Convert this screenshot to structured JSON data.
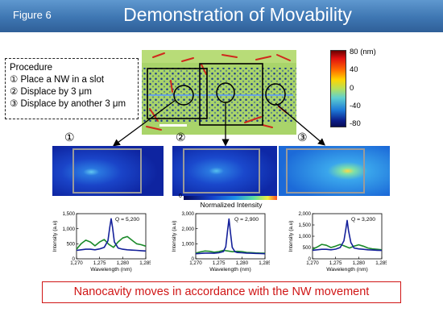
{
  "header": {
    "figure_label": "Figure 6",
    "title": "Demonstration of Movability"
  },
  "procedure": {
    "heading": "Procedure",
    "steps": [
      {
        "marker": "①",
        "text": " Place a NW in a slot"
      },
      {
        "marker": "②",
        "text": " Displace by 3 μm"
      },
      {
        "marker": "③",
        "text": " Displace by another 3 μm"
      }
    ]
  },
  "afm_colorbar": {
    "ticks": [
      "80 (nm)",
      "40",
      "0",
      "-40",
      "-80"
    ]
  },
  "step_markers": [
    "①",
    "②",
    "③"
  ],
  "pl_colorbar": {
    "label": "Normalized Intensity",
    "zero_label": "0"
  },
  "chart_data": [
    {
      "type": "line",
      "panel": "①",
      "annotation": "Q = 5,200",
      "xlabel": "Wavelength (nm)",
      "ylabel": "Intensity (a.u)",
      "xlim": [
        1270,
        1285
      ],
      "ylim": [
        0,
        1500
      ],
      "xticks": [
        "1,270",
        "1,275",
        "1,280",
        "1,285"
      ],
      "yticks": [
        "0",
        "500",
        "1,000",
        "1,500"
      ],
      "series": [
        {
          "color": "#1b8a2a",
          "x": [
            1270,
            1271,
            1272,
            1273,
            1274,
            1275,
            1276,
            1277,
            1278,
            1279,
            1280,
            1281,
            1282,
            1283,
            1284,
            1285
          ],
          "y": [
            320,
            500,
            620,
            560,
            430,
            560,
            640,
            480,
            380,
            560,
            690,
            740,
            620,
            500,
            470,
            420
          ]
        },
        {
          "color": "#14209a",
          "x": [
            1270,
            1271,
            1272,
            1273,
            1274,
            1275,
            1276,
            1276.8,
            1277.2,
            1277.5,
            1277.8,
            1278.2,
            1279,
            1280,
            1281,
            1282,
            1283,
            1284,
            1285
          ],
          "y": [
            280,
            300,
            320,
            320,
            300,
            330,
            380,
            600,
            1050,
            1330,
            1050,
            560,
            360,
            320,
            300,
            290,
            280,
            270,
            260
          ]
        }
      ]
    },
    {
      "type": "line",
      "panel": "②",
      "annotation": "Q = 2,900",
      "xlabel": "Wavelength (nm)",
      "ylabel": "Intensity (a.u)",
      "xlim": [
        1270,
        1285
      ],
      "ylim": [
        0,
        3000
      ],
      "xticks": [
        "1,270",
        "1,275",
        "1,280",
        "1,285"
      ],
      "yticks": [
        "0",
        "1,000",
        "2,000",
        "3,000"
      ],
      "series": [
        {
          "color": "#1b8a2a",
          "x": [
            1270,
            1271,
            1272,
            1273,
            1274,
            1275,
            1276,
            1277,
            1278,
            1279,
            1280,
            1281,
            1282,
            1283,
            1284,
            1285
          ],
          "y": [
            380,
            460,
            520,
            500,
            440,
            480,
            560,
            520,
            470,
            500,
            480,
            430,
            410,
            390,
            380,
            370
          ]
        },
        {
          "color": "#14209a",
          "x": [
            1270,
            1271,
            1272,
            1273,
            1274,
            1275,
            1276,
            1276.5,
            1276.9,
            1277.2,
            1277.5,
            1277.9,
            1278.5,
            1279,
            1280,
            1281,
            1282,
            1283,
            1284,
            1285
          ],
          "y": [
            340,
            360,
            380,
            380,
            370,
            400,
            480,
            800,
            1900,
            2650,
            1800,
            760,
            470,
            420,
            400,
            380,
            370,
            360,
            350,
            340
          ]
        }
      ]
    },
    {
      "type": "line",
      "panel": "③",
      "annotation": "Q = 3,200",
      "xlabel": "Wavelength (nm)",
      "ylabel": "Intensity (a.u)",
      "xlim": [
        1270,
        1285
      ],
      "ylim": [
        0,
        2000
      ],
      "xticks": [
        "1,270",
        "1,275",
        "1,280",
        "1,285"
      ],
      "yticks": [
        "0",
        "500",
        "1,000",
        "1,500",
        "2,000"
      ],
      "series": [
        {
          "color": "#1b8a2a",
          "x": [
            1270,
            1271,
            1272,
            1273,
            1274,
            1275,
            1276,
            1277,
            1278,
            1279,
            1280,
            1281,
            1282,
            1283,
            1284,
            1285
          ],
          "y": [
            420,
            520,
            640,
            600,
            500,
            560,
            640,
            560,
            480,
            560,
            620,
            560,
            480,
            440,
            420,
            400
          ]
        },
        {
          "color": "#14209a",
          "x": [
            1270,
            1271,
            1272,
            1273,
            1274,
            1275,
            1276,
            1276.8,
            1277.2,
            1277.5,
            1277.8,
            1278.3,
            1279,
            1280,
            1281,
            1282,
            1283,
            1284,
            1285
          ],
          "y": [
            380,
            400,
            420,
            420,
            400,
            430,
            500,
            800,
            1300,
            1700,
            1250,
            720,
            480,
            440,
            420,
            400,
            390,
            380,
            370
          ]
        }
      ]
    }
  ],
  "conclusion": "Nanocavity moves in accordance with the NW movement"
}
